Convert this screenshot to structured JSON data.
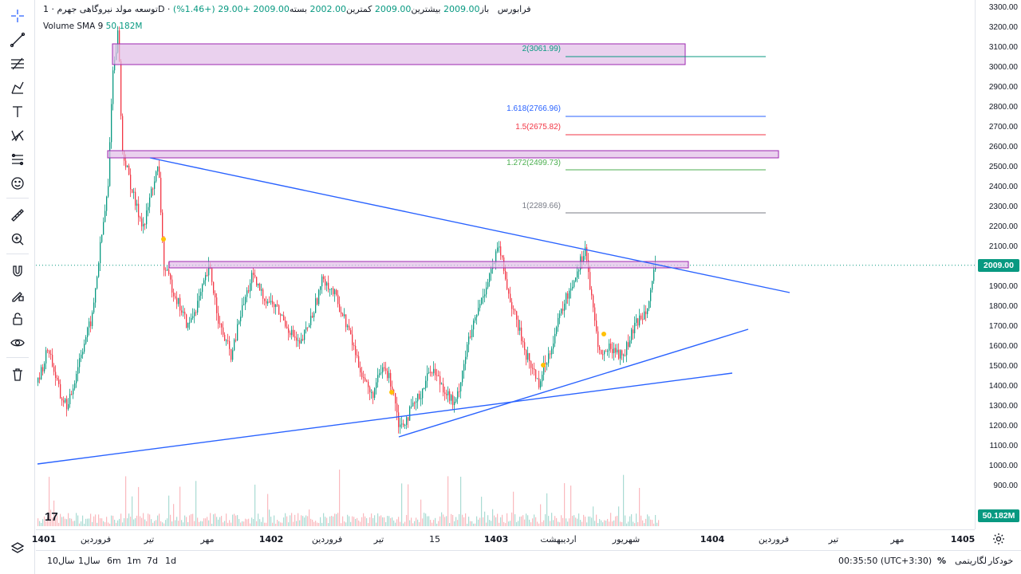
{
  "legend": {
    "symbol": "توسعه مولد نیروگاهی جهرم",
    "interval": "1D",
    "exchange": "فرابورس",
    "open_label": "باز",
    "open": "2009.00",
    "high_label": "بیشترین",
    "high": "2009.00",
    "low_label": "کمترین",
    "low": "2002.00",
    "close_label": "بسته",
    "close": "2009.00",
    "change": "+29.00 (+1.46%)"
  },
  "volume_legend": {
    "name": "Volume SMA 9",
    "value": "50.182M"
  },
  "price_axis": {
    "ticks": [
      "3300.00",
      "3200.00",
      "3100.00",
      "3000.00",
      "2900.00",
      "2800.00",
      "2700.00",
      "2600.00",
      "2500.00",
      "2400.00",
      "2300.00",
      "2200.00",
      "2100.00",
      "1900.00",
      "1800.00",
      "1700.00",
      "1600.00",
      "1500.00",
      "1400.00",
      "1300.00",
      "1200.00",
      "1100.00",
      "1000.00",
      "900.00"
    ],
    "current_price": "2009.00",
    "volume_value": "50.182M"
  },
  "fib_labels": [
    {
      "label": "2(3061.99)",
      "color": "#089981"
    },
    {
      "label": "1.618(2766.96)",
      "color": "#2962ff"
    },
    {
      "label": "1.5(2675.82)",
      "color": "#f23645"
    },
    {
      "label": "1.272(2499.73)",
      "color": "#4caf50"
    },
    {
      "label": "1(2289.66)",
      "color": "#787b86"
    }
  ],
  "time_axis": [
    {
      "label": "1401",
      "bold": true
    },
    {
      "label": "فروردین",
      "bold": false
    },
    {
      "label": "تیر",
      "bold": false
    },
    {
      "label": "مهر",
      "bold": false
    },
    {
      "label": "1402",
      "bold": true
    },
    {
      "label": "فروردین",
      "bold": false
    },
    {
      "label": "تیر",
      "bold": false
    },
    {
      "label": "15",
      "bold": false
    },
    {
      "label": "1403",
      "bold": true
    },
    {
      "label": "اردیبهشت",
      "bold": false
    },
    {
      "label": "شهریور",
      "bold": false
    },
    {
      "label": "1404",
      "bold": true
    },
    {
      "label": "فروردین",
      "bold": false
    },
    {
      "label": "تیر",
      "bold": false
    },
    {
      "label": "مهر",
      "bold": false
    },
    {
      "label": "1405",
      "bold": true
    }
  ],
  "ranges": [
    "1d",
    "7d",
    "1m",
    "6m",
    "1سال",
    "10سال"
  ],
  "bottom_right": {
    "time": "00:35:50 (UTC+3:30)",
    "percent": "%",
    "log": "لگاریتمی",
    "auto": "خودکار"
  },
  "logo": "17",
  "colors": {
    "up": "#089981",
    "down": "#f23645",
    "trendline": "#2962ff",
    "zone_fill": "#e1bee7",
    "zone_border": "#9c27b0",
    "price_tag": "#089981",
    "marker": "#ffc107"
  },
  "tools": [
    "crosshair-icon",
    "trendline-icon",
    "fib-icon",
    "brush-icon",
    "text-icon",
    "pattern-icon",
    "forecast-icon",
    "emoji-icon",
    "ruler-icon",
    "zoom-icon",
    "magnet-icon",
    "lock-drawing-icon",
    "lock-icon",
    "eye-icon",
    "trash-icon"
  ]
}
